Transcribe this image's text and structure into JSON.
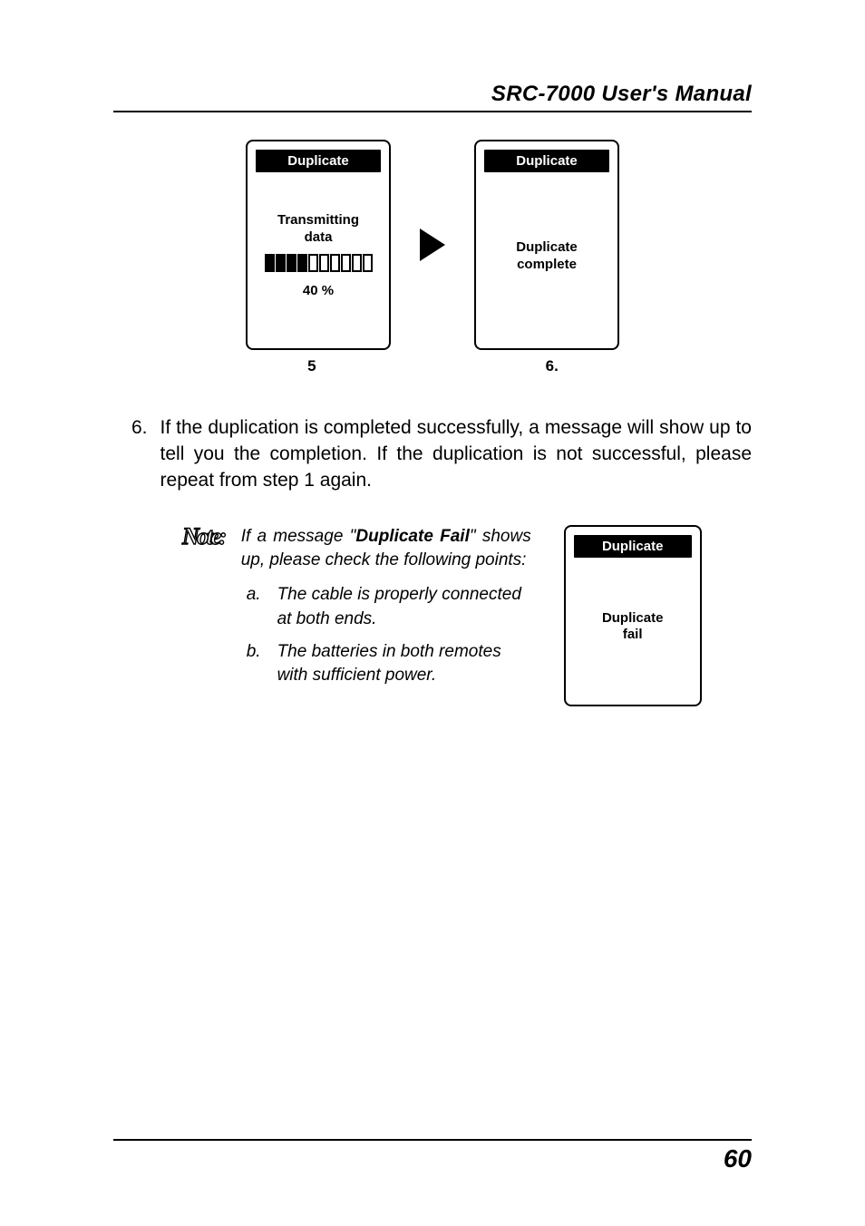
{
  "header": {
    "title": "SRC-7000 User's Manual"
  },
  "screens": {
    "screen1": {
      "header": "Duplicate",
      "line1": "Transmitting",
      "line2": "data",
      "percent": "40 %",
      "label": "5"
    },
    "screen2": {
      "header": "Duplicate",
      "line1": "Duplicate",
      "line2": "complete",
      "label": "6."
    },
    "screen3": {
      "header": "Duplicate",
      "line1": "Duplicate",
      "line2": "fail"
    }
  },
  "step": {
    "num": "6.",
    "text": "If the duplication is completed successfully, a message will show up to tell you the completion. If the duplication is not successful, please repeat from step 1 again."
  },
  "note": {
    "label": "Note:",
    "intro_before": "If a message \"",
    "intro_bold": "Duplicate Fail",
    "intro_after": "\" shows up, please check the following points:",
    "items": [
      {
        "marker": "a.",
        "text": "The cable is properly connected at both ends."
      },
      {
        "marker": "b.",
        "text": "The batteries in both remotes with sufficient power."
      }
    ]
  },
  "footer": {
    "page": "60"
  }
}
